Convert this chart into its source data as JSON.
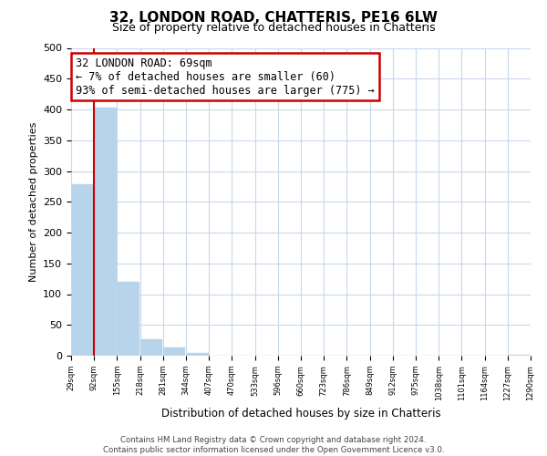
{
  "title": "32, LONDON ROAD, CHATTERIS, PE16 6LW",
  "subtitle": "Size of property relative to detached houses in Chatteris",
  "bar_values": [
    278,
    403,
    120,
    27,
    14,
    4,
    0,
    0,
    0,
    0,
    0,
    0,
    0,
    0,
    0,
    0,
    0,
    0,
    0,
    2
  ],
  "bin_labels": [
    "29sqm",
    "92sqm",
    "155sqm",
    "218sqm",
    "281sqm",
    "344sqm",
    "407sqm",
    "470sqm",
    "533sqm",
    "596sqm",
    "660sqm",
    "723sqm",
    "786sqm",
    "849sqm",
    "912sqm",
    "975sqm",
    "1038sqm",
    "1101sqm",
    "1164sqm",
    "1227sqm",
    "1290sqm"
  ],
  "bar_color": "#b8d4ea",
  "red_line_color": "#cc0000",
  "annotation_title": "32 LONDON ROAD: 69sqm",
  "annotation_line1": "← 7% of detached houses are smaller (60)",
  "annotation_line2": "93% of semi-detached houses are larger (775) →",
  "annotation_box_color": "#ffffff",
  "annotation_box_edge": "#cc0000",
  "ylabel": "Number of detached properties",
  "xlabel": "Distribution of detached houses by size in Chatteris",
  "ylim": [
    0,
    500
  ],
  "yticks": [
    0,
    50,
    100,
    150,
    200,
    250,
    300,
    350,
    400,
    450,
    500
  ],
  "footer_line1": "Contains HM Land Registry data © Crown copyright and database right 2024.",
  "footer_line2": "Contains public sector information licensed under the Open Government Licence v3.0.",
  "bg_color": "#ffffff",
  "grid_color": "#c8d8ec"
}
